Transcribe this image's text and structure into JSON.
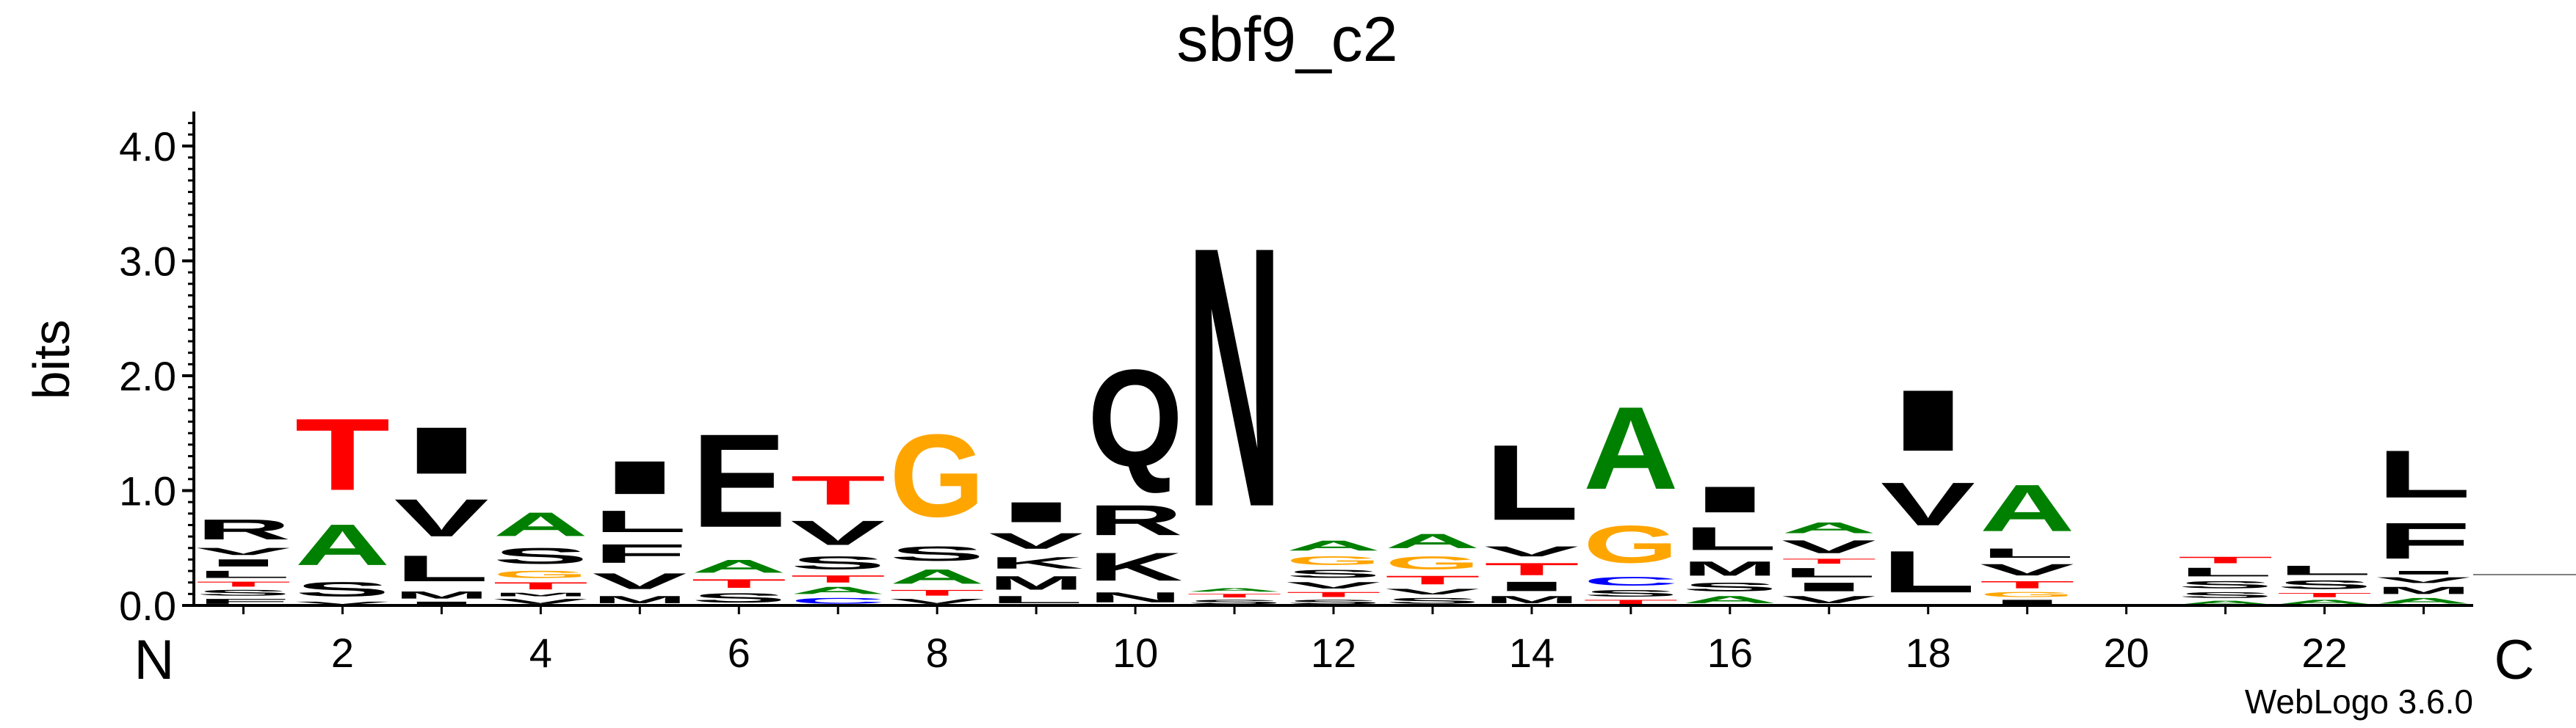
{
  "chart_data": {
    "type": "sequence-logo",
    "title": "sbf9_c2",
    "ylabel": "bits",
    "ylim": [
      0,
      4.3
    ],
    "yticks": [
      {
        "value": 0,
        "label": "0.0"
      },
      {
        "value": 1,
        "label": "1.0"
      },
      {
        "value": 2,
        "label": "2.0"
      },
      {
        "value": 3,
        "label": "3.0"
      },
      {
        "value": 4,
        "label": "4.0"
      }
    ],
    "n_positions": 23,
    "xticks": [
      2,
      4,
      6,
      8,
      10,
      12,
      14,
      16,
      18,
      20,
      22
    ],
    "xtick_labels": [
      "2",
      "4",
      "6",
      "8",
      "10",
      "12",
      "14",
      "16",
      "18",
      "20",
      "22"
    ],
    "n_label": "N",
    "c_label": "C",
    "footer": "WebLogo 3.6.0",
    "colors": {
      "hydrophobic": "#000000",
      "polar": "#008000",
      "threonine": "#ff0000",
      "glycine": "#ffa500",
      "cysteine": "#0000ff",
      "minor": "#808080"
    },
    "color_map": {
      "A": "#008000",
      "S": "#000000",
      "T": "#ff0000",
      "G": "#ffa500",
      "C": "#0000ff",
      "I": "#000000",
      "V": "#000000",
      "L": "#000000",
      "F": "#000000",
      "M": "#000000",
      "E": "#000000",
      "Q": "#000000",
      "N": "#000000",
      "R": "#000000",
      "K": "#000000",
      "Y": "#000000",
      "W": "#000000",
      "H": "#000000",
      "P": "#000000",
      "D": "#000000"
    },
    "positions": [
      {
        "pos": 1,
        "stack": [
          {
            "aa": "F",
            "bits": 0.07
          },
          {
            "aa": "S",
            "bits": 0.08
          },
          {
            "aa": "T",
            "bits": 0.07
          },
          {
            "aa": "L",
            "bits": 0.1
          },
          {
            "aa": "I",
            "bits": 0.1
          },
          {
            "aa": "V",
            "bits": 0.1
          },
          {
            "aa": "R",
            "bits": 0.28
          }
        ]
      },
      {
        "pos": 2,
        "stack": [
          {
            "aa": "V",
            "bits": 0.04
          },
          {
            "aa": "S",
            "bits": 0.2
          },
          {
            "aa": "A",
            "bits": 0.57
          },
          {
            "aa": "T",
            "bits": 1.0
          }
        ]
      },
      {
        "pos": 3,
        "stack": [
          {
            "aa": "I",
            "bits": 0.04
          },
          {
            "aa": "M",
            "bits": 0.1
          },
          {
            "aa": "L",
            "bits": 0.36
          },
          {
            "aa": "V",
            "bits": 0.52
          },
          {
            "aa": "I",
            "bits": 0.65
          }
        ]
      },
      {
        "pos": 4,
        "stack": [
          {
            "aa": "V",
            "bits": 0.07
          },
          {
            "aa": "M",
            "bits": 0.05
          },
          {
            "aa": "T",
            "bits": 0.1
          },
          {
            "aa": "G",
            "bits": 0.1
          },
          {
            "aa": "S",
            "bits": 0.22
          },
          {
            "aa": "A",
            "bits": 0.33
          }
        ]
      },
      {
        "pos": 5,
        "stack": [
          {
            "aa": "M",
            "bits": 0.1
          },
          {
            "aa": "V",
            "bits": 0.22
          },
          {
            "aa": "F",
            "bits": 0.26
          },
          {
            "aa": "L",
            "bits": 0.3
          },
          {
            "aa": "I",
            "bits": 0.46
          }
        ]
      },
      {
        "pos": 6,
        "stack": [
          {
            "aa": "S",
            "bits": 0.13
          },
          {
            "aa": "T",
            "bits": 0.12
          },
          {
            "aa": "A",
            "bits": 0.18
          },
          {
            "aa": "E",
            "bits": 1.3
          }
        ]
      },
      {
        "pos": 7,
        "stack": [
          {
            "aa": "C",
            "bits": 0.08
          },
          {
            "aa": "A",
            "bits": 0.1
          },
          {
            "aa": "T",
            "bits": 0.1
          },
          {
            "aa": "S",
            "bits": 0.18
          },
          {
            "aa": "V",
            "bits": 0.34
          },
          {
            "aa": "T",
            "bits": 0.4
          }
        ]
      },
      {
        "pos": 8,
        "stack": [
          {
            "aa": "V",
            "bits": 0.07
          },
          {
            "aa": "T",
            "bits": 0.08
          },
          {
            "aa": "A",
            "bits": 0.2
          },
          {
            "aa": "S",
            "bits": 0.2
          },
          {
            "aa": "G",
            "bits": 1.15
          }
        ]
      },
      {
        "pos": 9,
        "stack": [
          {
            "aa": "L",
            "bits": 0.1
          },
          {
            "aa": "M",
            "bits": 0.19
          },
          {
            "aa": "K",
            "bits": 0.16
          },
          {
            "aa": "V",
            "bits": 0.22
          },
          {
            "aa": "I",
            "bits": 0.28
          }
        ]
      },
      {
        "pos": 10,
        "stack": [
          {
            "aa": "N",
            "bits": 0.14
          },
          {
            "aa": "K",
            "bits": 0.39
          },
          {
            "aa": "R",
            "bits": 0.42
          },
          {
            "aa": "Q",
            "bits": 1.35
          }
        ]
      },
      {
        "pos": 11,
        "stack": [
          {
            "aa": "S",
            "bits": 0.06
          },
          {
            "aa": "T",
            "bits": 0.05
          },
          {
            "aa": "A",
            "bits": 0.05
          },
          {
            "aa": "N",
            "bits": 3.62
          }
        ]
      },
      {
        "pos": 12,
        "stack": [
          {
            "aa": "S",
            "bits": 0.06
          },
          {
            "aa": "T",
            "bits": 0.07
          },
          {
            "aa": "V",
            "bits": 0.09
          },
          {
            "aa": "S",
            "bits": 0.11
          },
          {
            "aa": "G",
            "bits": 0.12
          },
          {
            "aa": "A",
            "bits": 0.14
          }
        ]
      },
      {
        "pos": 13,
        "stack": [
          {
            "aa": "S",
            "bits": 0.08
          },
          {
            "aa": "V",
            "bits": 0.08
          },
          {
            "aa": "T",
            "bits": 0.12
          },
          {
            "aa": "G",
            "bits": 0.18
          },
          {
            "aa": "A",
            "bits": 0.2
          }
        ]
      },
      {
        "pos": 14,
        "stack": [
          {
            "aa": "M",
            "bits": 0.1
          },
          {
            "aa": "I",
            "bits": 0.13
          },
          {
            "aa": "T",
            "bits": 0.17
          },
          {
            "aa": "V",
            "bits": 0.14
          },
          {
            "aa": "L",
            "bits": 1.05
          }
        ]
      },
      {
        "pos": 15,
        "stack": [
          {
            "aa": "T",
            "bits": 0.06
          },
          {
            "aa": "S",
            "bits": 0.09
          },
          {
            "aa": "C",
            "bits": 0.12
          },
          {
            "aa": "G",
            "bits": 0.52
          },
          {
            "aa": "A",
            "bits": 1.15
          }
        ]
      },
      {
        "pos": 16,
        "stack": [
          {
            "aa": "A",
            "bits": 0.1
          },
          {
            "aa": "S",
            "bits": 0.12
          },
          {
            "aa": "M",
            "bits": 0.2
          },
          {
            "aa": "L",
            "bits": 0.32
          },
          {
            "aa": "I",
            "bits": 0.36
          }
        ]
      },
      {
        "pos": 17,
        "stack": [
          {
            "aa": "V",
            "bits": 0.1
          },
          {
            "aa": "I",
            "bits": 0.12
          },
          {
            "aa": "L",
            "bits": 0.13
          },
          {
            "aa": "T",
            "bits": 0.07
          },
          {
            "aa": "V",
            "bits": 0.18
          },
          {
            "aa": "A",
            "bits": 0.15
          }
        ]
      },
      {
        "pos": 18,
        "stack": [
          {
            "aa": "L",
            "bits": 0.58
          },
          {
            "aa": "V",
            "bits": 0.6
          },
          {
            "aa": "I",
            "bits": 0.85
          }
        ]
      },
      {
        "pos": 19,
        "stack": [
          {
            "aa": "I",
            "bits": 0.06
          },
          {
            "aa": "G",
            "bits": 0.07
          },
          {
            "aa": "T",
            "bits": 0.1
          },
          {
            "aa": "V",
            "bits": 0.16
          },
          {
            "aa": "L",
            "bits": 0.13
          },
          {
            "aa": "A",
            "bits": 0.65
          }
        ]
      },
      {
        "pos": 20,
        "stack": []
      },
      {
        "pos": 21,
        "stack": [
          {
            "aa": "A",
            "bits": 0.05
          },
          {
            "aa": "S",
            "bits": 0.08
          },
          {
            "aa": "S",
            "bits": 0.1
          },
          {
            "aa": "L",
            "bits": 0.12
          },
          {
            "aa": "T",
            "bits": 0.09
          }
        ]
      },
      {
        "pos": 22,
        "stack": [
          {
            "aa": "A",
            "bits": 0.06
          },
          {
            "aa": "T",
            "bits": 0.06
          },
          {
            "aa": "S",
            "bits": 0.12
          },
          {
            "aa": "L",
            "bits": 0.13
          }
        ]
      },
      {
        "pos": 23,
        "stack": [
          {
            "aa": "A",
            "bits": 0.08
          },
          {
            "aa": "M",
            "bits": 0.1
          },
          {
            "aa": "V",
            "bits": 0.08
          },
          {
            "aa": "I",
            "bits": 0.05
          },
          {
            "aa": "F",
            "bits": 0.5
          },
          {
            "aa": "L",
            "bits": 0.66
          }
        ]
      }
    ]
  }
}
